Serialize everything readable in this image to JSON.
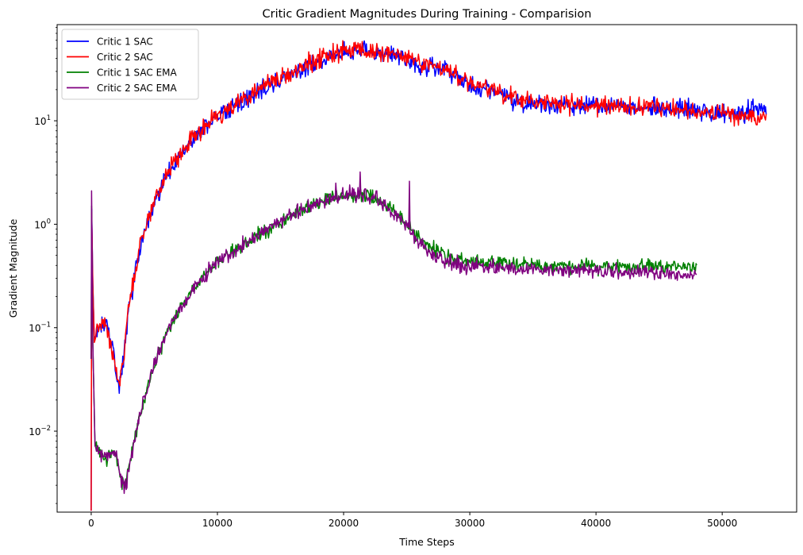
{
  "chart_data": {
    "type": "line",
    "title": "Critic Gradient Magnitudes During Training - Comparision",
    "xlabel": "Time Steps",
    "ylabel": "Gradient Magnitude",
    "xlim": [
      -2700,
      55900
    ],
    "ylim": [
      0.00165,
      85
    ],
    "yscale": "log",
    "grid": false,
    "legend_position": "upper-left",
    "x_ticks": [
      0,
      10000,
      20000,
      30000,
      40000,
      50000
    ],
    "x_tick_labels": [
      "0",
      "10000",
      "20000",
      "30000",
      "40000",
      "50000"
    ],
    "y_ticks": [
      0.01,
      0.1,
      1,
      10
    ],
    "y_tick_labels": [
      {
        "base": "10",
        "exp": "−2"
      },
      {
        "base": "10",
        "exp": "−1"
      },
      {
        "base": "10",
        "exp": "0"
      },
      {
        "base": "10",
        "exp": "1"
      }
    ],
    "series": [
      {
        "name": "Critic 1 SAC",
        "color": "#0000ff",
        "noise": 0.13,
        "x_end": 53500,
        "points": [
          [
            0,
            0.0017
          ],
          [
            40,
            1.4
          ],
          [
            120,
            0.3
          ],
          [
            250,
            0.075
          ],
          [
            500,
            0.095
          ],
          [
            900,
            0.112
          ],
          [
            1300,
            0.1
          ],
          [
            1700,
            0.06
          ],
          [
            2000,
            0.035
          ],
          [
            2250,
            0.027
          ],
          [
            2500,
            0.045
          ],
          [
            3000,
            0.16
          ],
          [
            4000,
            0.7
          ],
          [
            5000,
            1.6
          ],
          [
            6000,
            2.9
          ],
          [
            7000,
            4.6
          ],
          [
            8000,
            6.6
          ],
          [
            9000,
            8.7
          ],
          [
            10000,
            11
          ],
          [
            11000,
            13
          ],
          [
            12000,
            15.5
          ],
          [
            13000,
            18
          ],
          [
            14000,
            21.5
          ],
          [
            15000,
            25
          ],
          [
            16000,
            29
          ],
          [
            17000,
            33
          ],
          [
            18000,
            38
          ],
          [
            19000,
            42
          ],
          [
            20000,
            46
          ],
          [
            21000,
            47
          ],
          [
            22000,
            46
          ],
          [
            23000,
            44
          ],
          [
            24000,
            43
          ],
          [
            25000,
            39
          ],
          [
            26000,
            35
          ],
          [
            27000,
            33
          ],
          [
            28000,
            31
          ],
          [
            29000,
            26
          ],
          [
            30000,
            22
          ],
          [
            31000,
            20
          ],
          [
            32000,
            19
          ],
          [
            33000,
            17
          ],
          [
            34000,
            15
          ],
          [
            35000,
            15
          ],
          [
            36000,
            14.5
          ],
          [
            37000,
            14
          ],
          [
            38000,
            14
          ],
          [
            39000,
            14
          ],
          [
            40000,
            13.8
          ],
          [
            42000,
            13.6
          ],
          [
            44000,
            13.5
          ],
          [
            46000,
            13
          ],
          [
            48000,
            12.5
          ],
          [
            50000,
            11.5
          ],
          [
            51000,
            11.5
          ],
          [
            52000,
            12
          ],
          [
            53000,
            13
          ],
          [
            53500,
            13.5
          ]
        ]
      },
      {
        "name": "Critic 2 SAC",
        "color": "#ff0000",
        "noise": 0.13,
        "x_end": 53500,
        "points": [
          [
            0,
            0.0017
          ],
          [
            40,
            1.3
          ],
          [
            120,
            0.28
          ],
          [
            250,
            0.072
          ],
          [
            500,
            0.093
          ],
          [
            900,
            0.11
          ],
          [
            1300,
            0.098
          ],
          [
            1700,
            0.058
          ],
          [
            2000,
            0.034
          ],
          [
            2250,
            0.027
          ],
          [
            2500,
            0.047
          ],
          [
            3000,
            0.17
          ],
          [
            4000,
            0.72
          ],
          [
            5000,
            1.65
          ],
          [
            6000,
            3.0
          ],
          [
            7000,
            4.7
          ],
          [
            8000,
            6.8
          ],
          [
            9000,
            8.9
          ],
          [
            10000,
            11.2
          ],
          [
            11000,
            13.3
          ],
          [
            12000,
            15.8
          ],
          [
            13000,
            18.5
          ],
          [
            14000,
            22
          ],
          [
            15000,
            25.5
          ],
          [
            16000,
            29.5
          ],
          [
            17000,
            34
          ],
          [
            18000,
            39
          ],
          [
            19000,
            43
          ],
          [
            20000,
            47
          ],
          [
            21000,
            48
          ],
          [
            22000,
            47
          ],
          [
            23000,
            45
          ],
          [
            24000,
            44
          ],
          [
            25000,
            40
          ],
          [
            26000,
            36
          ],
          [
            27000,
            34
          ],
          [
            28000,
            32
          ],
          [
            29000,
            27
          ],
          [
            30000,
            23
          ],
          [
            31000,
            21
          ],
          [
            32000,
            19.5
          ],
          [
            33000,
            17.5
          ],
          [
            34000,
            15.5
          ],
          [
            35000,
            15.5
          ],
          [
            36000,
            15
          ],
          [
            37000,
            14.5
          ],
          [
            38000,
            14.3
          ],
          [
            39000,
            14.2
          ],
          [
            40000,
            14
          ],
          [
            42000,
            13.8
          ],
          [
            44000,
            13.5
          ],
          [
            46000,
            13
          ],
          [
            48000,
            12.5
          ],
          [
            50000,
            11.5
          ],
          [
            51000,
            11
          ],
          [
            52000,
            11
          ],
          [
            53000,
            11
          ],
          [
            53500,
            11
          ]
        ]
      },
      {
        "name": "Critic 1 SAC EMA",
        "color": "#008000",
        "noise": 0.1,
        "x_end": 48000,
        "points": [
          [
            0,
            0.05
          ],
          [
            30,
            1.5
          ],
          [
            120,
            0.08
          ],
          [
            300,
            0.0075
          ],
          [
            600,
            0.0062
          ],
          [
            1000,
            0.0058
          ],
          [
            1300,
            0.0055
          ],
          [
            1700,
            0.0065
          ],
          [
            1900,
            0.0068
          ],
          [
            2100,
            0.005
          ],
          [
            2400,
            0.0033
          ],
          [
            2700,
            0.003
          ],
          [
            3000,
            0.0045
          ],
          [
            3500,
            0.009
          ],
          [
            4000,
            0.017
          ],
          [
            5000,
            0.045
          ],
          [
            6000,
            0.09
          ],
          [
            7000,
            0.15
          ],
          [
            8000,
            0.22
          ],
          [
            9000,
            0.32
          ],
          [
            10000,
            0.43
          ],
          [
            11000,
            0.53
          ],
          [
            12000,
            0.63
          ],
          [
            13000,
            0.76
          ],
          [
            14000,
            0.9
          ],
          [
            15000,
            1.05
          ],
          [
            16000,
            1.25
          ],
          [
            17000,
            1.42
          ],
          [
            18000,
            1.6
          ],
          [
            19000,
            1.75
          ],
          [
            20000,
            1.9
          ],
          [
            21000,
            1.95
          ],
          [
            22000,
            1.9
          ],
          [
            23000,
            1.65
          ],
          [
            24000,
            1.35
          ],
          [
            25000,
            1.0
          ],
          [
            26000,
            0.72
          ],
          [
            27000,
            0.58
          ],
          [
            28000,
            0.5
          ],
          [
            29000,
            0.46
          ],
          [
            30000,
            0.44
          ],
          [
            32000,
            0.42
          ],
          [
            34000,
            0.41
          ],
          [
            36000,
            0.4
          ],
          [
            38000,
            0.39
          ],
          [
            40000,
            0.39
          ],
          [
            42000,
            0.39
          ],
          [
            44000,
            0.39
          ],
          [
            46000,
            0.39
          ],
          [
            48000,
            0.4
          ]
        ]
      },
      {
        "name": "Critic 2 SAC EMA",
        "color": "#800080",
        "noise": 0.1,
        "x_end": 48000,
        "points": [
          [
            0,
            0.05
          ],
          [
            30,
            2.1
          ],
          [
            120,
            0.08
          ],
          [
            300,
            0.0072
          ],
          [
            600,
            0.006
          ],
          [
            1000,
            0.006
          ],
          [
            1300,
            0.0057
          ],
          [
            1700,
            0.0066
          ],
          [
            1900,
            0.0067
          ],
          [
            2100,
            0.0048
          ],
          [
            2400,
            0.0031
          ],
          [
            2700,
            0.0028
          ],
          [
            3000,
            0.0043
          ],
          [
            3500,
            0.0088
          ],
          [
            4000,
            0.017
          ],
          [
            5000,
            0.044
          ],
          [
            6000,
            0.088
          ],
          [
            7000,
            0.15
          ],
          [
            8000,
            0.22
          ],
          [
            9000,
            0.32
          ],
          [
            10000,
            0.43
          ],
          [
            11000,
            0.53
          ],
          [
            12000,
            0.63
          ],
          [
            13000,
            0.76
          ],
          [
            14000,
            0.9
          ],
          [
            15000,
            1.05
          ],
          [
            16000,
            1.25
          ],
          [
            17000,
            1.42
          ],
          [
            18000,
            1.6
          ],
          [
            19000,
            1.75
          ],
          [
            20000,
            1.9
          ],
          [
            21000,
            1.95
          ],
          [
            22000,
            1.85
          ],
          [
            23000,
            1.6
          ],
          [
            24000,
            1.3
          ],
          [
            25000,
            0.95
          ],
          [
            26000,
            0.65
          ],
          [
            27000,
            0.52
          ],
          [
            28000,
            0.45
          ],
          [
            29000,
            0.41
          ],
          [
            30000,
            0.4
          ],
          [
            32000,
            0.38
          ],
          [
            34000,
            0.37
          ],
          [
            36000,
            0.37
          ],
          [
            38000,
            0.36
          ],
          [
            40000,
            0.36
          ],
          [
            42000,
            0.35
          ],
          [
            44000,
            0.34
          ],
          [
            46000,
            0.32
          ],
          [
            48000,
            0.32
          ]
        ]
      }
    ],
    "spikes": [
      {
        "series": 3,
        "x": 19400,
        "y": 2.5
      },
      {
        "series": 3,
        "x": 20500,
        "y": 2.4
      },
      {
        "series": 3,
        "x": 21300,
        "y": 3.2
      },
      {
        "series": 3,
        "x": 22600,
        "y": 2.1
      },
      {
        "series": 3,
        "x": 25200,
        "y": 2.6
      },
      {
        "series": 0,
        "x": 44600,
        "y": 17
      },
      {
        "series": 1,
        "x": 19800,
        "y": 52
      }
    ]
  }
}
